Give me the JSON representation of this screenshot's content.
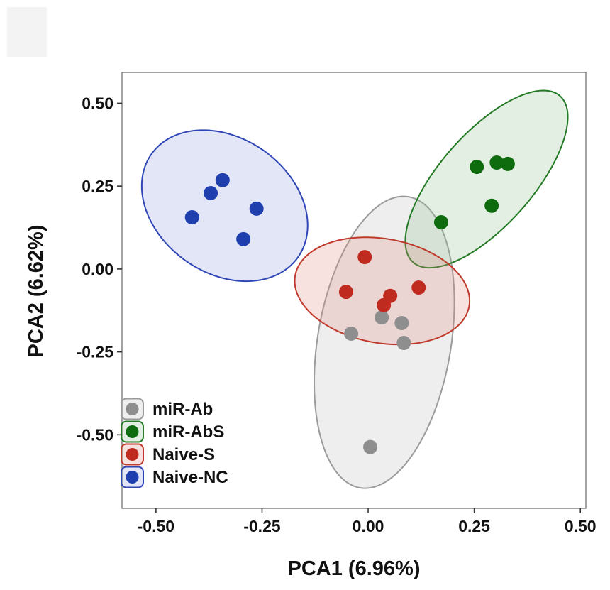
{
  "chart_data": {
    "type": "scatter",
    "xlabel": "PCA1 (6.96%)",
    "ylabel": "PCA2 (6.62%)",
    "xlim": [
      -0.58,
      0.513
    ],
    "ylim": [
      -0.722,
      0.593
    ],
    "xticks": [
      -0.5,
      -0.25,
      0.0,
      0.25,
      0.5
    ],
    "xtick_labels": [
      "-0.50",
      "-0.25",
      "0.00",
      "0.25",
      "0.50"
    ],
    "yticks": [
      0.5,
      0.25,
      0.0,
      -0.25,
      -0.5
    ],
    "ytick_labels": [
      "0.50",
      "0.25",
      "0.00",
      "-0.25",
      "-0.50"
    ],
    "grid": false,
    "legend_position": "bottom-left",
    "series": [
      {
        "name": "miR-Ab",
        "color": "#8e8e8e",
        "ellipse_line_color": "#9b9b9b",
        "ellipse_fill_color": "#bdbdbd",
        "points": [
          [
            0.032,
            -0.146
          ],
          [
            0.079,
            -0.163
          ],
          [
            -0.04,
            -0.195
          ],
          [
            0.084,
            -0.223
          ],
          [
            0.005,
            -0.537
          ]
        ],
        "ellipse": {
          "center": [
            0.038,
            -0.221
          ],
          "axis_1": [
            0.057,
            0.439
          ],
          "axis_2": [
            0.155,
            -0.033
          ]
        }
      },
      {
        "name": "miR-AbS",
        "color": "#0e6b0e",
        "ellipse_line_color": "#247a24",
        "ellipse_fill_color": "#8fbf8f",
        "points": [
          [
            0.256,
            0.308
          ],
          [
            0.303,
            0.321
          ],
          [
            0.329,
            0.317
          ],
          [
            0.291,
            0.191
          ],
          [
            0.172,
            0.141
          ]
        ],
        "ellipse": {
          "center": [
            0.279,
            0.271
          ],
          "axis_1": [
            0.173,
            0.251
          ],
          "axis_2": [
            0.082,
            -0.092
          ]
        }
      },
      {
        "name": "Naive-S",
        "color": "#bf2c1f",
        "ellipse_line_color": "#c0392b",
        "ellipse_fill_color": "#e08a80",
        "points": [
          [
            -0.008,
            0.036
          ],
          [
            -0.052,
            -0.069
          ],
          [
            0.052,
            -0.081
          ],
          [
            0.037,
            -0.109
          ],
          [
            0.119,
            -0.056
          ]
        ],
        "ellipse": {
          "center": [
            0.033,
            -0.066
          ],
          "axis_1": [
            0.205,
            -0.046
          ],
          "axis_2": [
            -0.021,
            -0.155
          ]
        }
      },
      {
        "name": "Naive-NC",
        "color": "#1f3fae",
        "ellipse_line_color": "#2f46b5",
        "ellipse_fill_color": "#8f9de0",
        "points": [
          [
            -0.415,
            0.156
          ],
          [
            -0.371,
            0.229
          ],
          [
            -0.343,
            0.268
          ],
          [
            -0.263,
            0.182
          ],
          [
            -0.294,
            0.09
          ]
        ],
        "ellipse": {
          "center": [
            -0.338,
            0.191
          ],
          "axis_1": [
            0.173,
            -0.155
          ],
          "axis_2": [
            -0.091,
            -0.167
          ]
        }
      }
    ]
  }
}
